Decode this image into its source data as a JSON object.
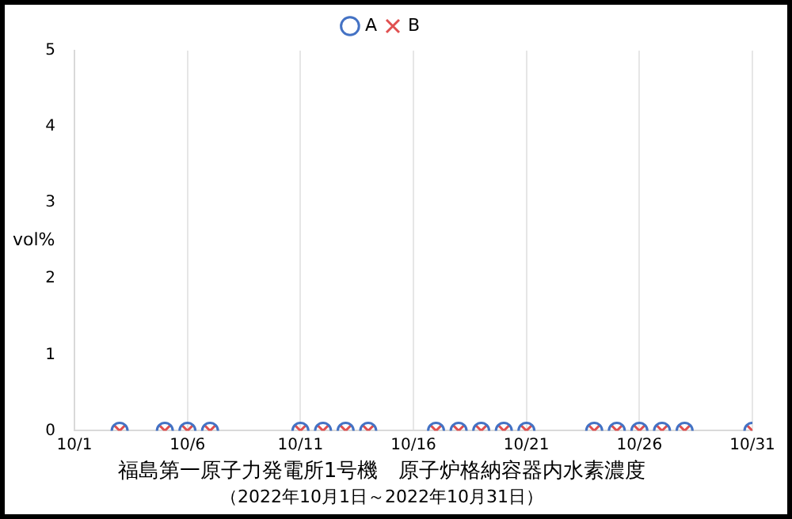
{
  "chart_data": {
    "type": "scatter",
    "title": "福島第一原子力発電所1号機　原子炉格納容器内水素濃度",
    "subtitle": "（2022年10月1日～2022年10月31日）",
    "ylabel": "vol%",
    "x": [
      "--10-03",
      "--10-05",
      "--10-06",
      "--10-07",
      "--10-11",
      "--10-12",
      "--10-13",
      "--10-14",
      "--10-17",
      "--10-18",
      "--10-19",
      "--10-20",
      "--10-21",
      "--10-24",
      "--10-25",
      "--10-26",
      "--10-27",
      "--10-28",
      "--10-31"
    ],
    "series": [
      {
        "name": "A",
        "color": "#4472c4",
        "marker": "circle",
        "values": [
          0,
          0,
          0,
          0,
          0,
          0,
          0,
          0,
          0,
          0,
          0,
          0,
          0,
          0,
          0,
          0,
          0,
          0,
          0
        ]
      },
      {
        "name": "B",
        "color": "#e05050",
        "marker": "cross",
        "values": [
          0,
          0,
          0,
          0,
          0,
          0,
          0,
          0,
          0,
          0,
          0,
          0,
          0,
          0,
          0,
          0,
          0,
          0,
          0
        ]
      }
    ],
    "xlim": [
      "--10-01",
      "--10-31"
    ],
    "xticks": [
      {
        "value": "--10-01",
        "label": "10/1"
      },
      {
        "value": "--10-06",
        "label": "10/6"
      },
      {
        "value": "--10-11",
        "label": "10/11"
      },
      {
        "value": "--10-16",
        "label": "10/16"
      },
      {
        "value": "--10-21",
        "label": "10/21"
      },
      {
        "value": "--10-26",
        "label": "10/26"
      },
      {
        "value": "--10-31",
        "label": "10/31"
      }
    ],
    "ylim": [
      0,
      5
    ],
    "yticks": [
      0,
      1,
      2,
      3,
      4,
      5
    ],
    "grid": "x",
    "legend": "top"
  }
}
